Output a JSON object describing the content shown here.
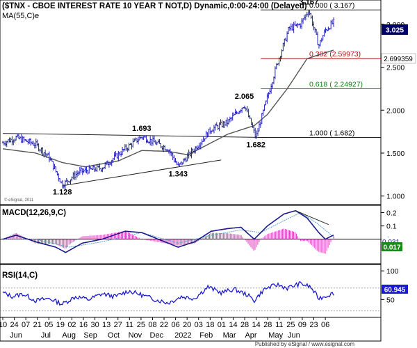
{
  "header": {
    "title": "($TNX - CBOE INTEREST RATE 10 YEAR T NOT,D) Dynamic,0:00-24:00 (Delayed)",
    "ma_label": "MA(55,C)e",
    "esignal_small": "© eSignal, 2011",
    "footer": "Published by eSignal / www.esignal.com"
  },
  "colors": {
    "candle": "#1e1eb4",
    "ma": "#555555",
    "fib_top": "#222222",
    "fib_382": "#b01010",
    "fib_618": "#10a010",
    "fib_100": "#222222",
    "macd_line": "#1a1a8c",
    "macd_signal": "#5aa0d0",
    "macd_hist": "#e040c0",
    "rsi": "#1a1ad0",
    "price_badge": "#000066"
  },
  "chart_data": [
    {
      "type": "candlestick",
      "title": "($TNX - CBOE INTEREST RATE 10 YEAR T NOT,D) Dynamic,0:00-24:00 (Delayed)",
      "ylim": [
        0.9,
        3.25
      ],
      "yticks": [
        1.0,
        1.5,
        2.0,
        2.5,
        3.0
      ],
      "ytick_labels": [
        "1.000",
        "1.500",
        "2.000",
        "2.500",
        "3.000"
      ],
      "last_price": "3.025",
      "ma_value": "2.699359",
      "key_points": [
        {
          "t": 0.0,
          "y": 1.62
        },
        {
          "t": 0.04,
          "y": 1.68
        },
        {
          "t": 0.1,
          "y": 1.6
        },
        {
          "t": 0.14,
          "y": 1.45
        },
        {
          "t": 0.18,
          "y": 1.13
        },
        {
          "t": 0.23,
          "y": 1.28
        },
        {
          "t": 0.3,
          "y": 1.33
        },
        {
          "t": 0.37,
          "y": 1.55
        },
        {
          "t": 0.42,
          "y": 1.693
        },
        {
          "t": 0.5,
          "y": 1.55
        },
        {
          "t": 0.53,
          "y": 1.343
        },
        {
          "t": 0.58,
          "y": 1.55
        },
        {
          "t": 0.63,
          "y": 1.78
        },
        {
          "t": 0.68,
          "y": 1.86
        },
        {
          "t": 0.73,
          "y": 2.065
        },
        {
          "t": 0.765,
          "y": 1.682
        },
        {
          "t": 0.8,
          "y": 2.15
        },
        {
          "t": 0.83,
          "y": 2.55
        },
        {
          "t": 0.865,
          "y": 2.95
        },
        {
          "t": 0.9,
          "y": 3.0
        },
        {
          "t": 0.925,
          "y": 3.167
        },
        {
          "t": 0.955,
          "y": 2.75
        },
        {
          "t": 0.975,
          "y": 2.93
        },
        {
          "t": 1.0,
          "y": 3.025
        }
      ],
      "ma_points": [
        {
          "t": 0.0,
          "y": 1.55
        },
        {
          "t": 0.1,
          "y": 1.5
        },
        {
          "t": 0.18,
          "y": 1.39
        },
        {
          "t": 0.25,
          "y": 1.34
        },
        {
          "t": 0.35,
          "y": 1.41
        },
        {
          "t": 0.42,
          "y": 1.53
        },
        {
          "t": 0.5,
          "y": 1.52
        },
        {
          "t": 0.56,
          "y": 1.48
        },
        {
          "t": 0.62,
          "y": 1.6
        },
        {
          "t": 0.68,
          "y": 1.72
        },
        {
          "t": 0.76,
          "y": 1.82
        },
        {
          "t": 0.8,
          "y": 1.95
        },
        {
          "t": 0.86,
          "y": 2.25
        },
        {
          "t": 0.92,
          "y": 2.6
        },
        {
          "t": 1.0,
          "y": 2.699359
        }
      ],
      "trendlines": [
        {
          "from": {
            "t": 0.0,
            "y": 1.73
          },
          "to": {
            "t": 0.785,
            "y": 1.682
          }
        },
        {
          "from": {
            "t": 0.18,
            "y": 1.12
          },
          "to": {
            "t": 0.66,
            "y": 1.42
          }
        }
      ],
      "fib_levels": [
        {
          "label": "0.000 ( 3.167)",
          "value": 3.167,
          "color_key": "fib_top"
        },
        {
          "label": "0.382 (2.59973)",
          "value": 2.59973,
          "color_key": "fib_382"
        },
        {
          "label": "0.618 ( 2.24927)",
          "value": 2.24927,
          "color_key": "fib_618"
        },
        {
          "label": "1.000 ( 1.682)",
          "value": 1.682,
          "color_key": "fib_100"
        }
      ],
      "annotations": [
        {
          "text": "1.693",
          "t": 0.42,
          "y": 1.693
        },
        {
          "text": "1.128",
          "t": 0.18,
          "y": 1.13
        },
        {
          "text": "1.343",
          "t": 0.53,
          "y": 1.343
        },
        {
          "text": "2.065",
          "t": 0.73,
          "y": 2.065
        },
        {
          "text": "1.682",
          "t": 0.765,
          "y": 1.682
        },
        {
          "text": "3.167",
          "t": 0.925,
          "y": 3.167
        }
      ]
    },
    {
      "type": "line",
      "title": "MACD(12,26,9,C)",
      "ylim": [
        -0.18,
        0.25
      ],
      "yticks": [
        0.0,
        0.1,
        0.2
      ],
      "ytick_labels": [
        "0",
        "0.1",
        "0.2"
      ],
      "last_macd": "0.031",
      "last_signal": "0.017",
      "macd_points": [
        {
          "t": 0.0,
          "y": 0.0
        },
        {
          "t": 0.04,
          "y": 0.03
        },
        {
          "t": 0.1,
          "y": -0.02
        },
        {
          "t": 0.16,
          "y": -0.06
        },
        {
          "t": 0.19,
          "y": -0.1
        },
        {
          "t": 0.24,
          "y": -0.03
        },
        {
          "t": 0.3,
          "y": 0.0
        },
        {
          "t": 0.37,
          "y": 0.06
        },
        {
          "t": 0.42,
          "y": 0.05
        },
        {
          "t": 0.49,
          "y": -0.02
        },
        {
          "t": 0.53,
          "y": -0.06
        },
        {
          "t": 0.58,
          "y": -0.02
        },
        {
          "t": 0.63,
          "y": 0.06
        },
        {
          "t": 0.68,
          "y": 0.08
        },
        {
          "t": 0.72,
          "y": 0.09
        },
        {
          "t": 0.76,
          "y": 0.0
        },
        {
          "t": 0.8,
          "y": 0.1
        },
        {
          "t": 0.85,
          "y": 0.19
        },
        {
          "t": 0.885,
          "y": 0.215
        },
        {
          "t": 0.92,
          "y": 0.16
        },
        {
          "t": 0.955,
          "y": 0.05
        },
        {
          "t": 0.975,
          "y": 0.0
        },
        {
          "t": 1.0,
          "y": 0.031
        }
      ],
      "signal_points": [
        {
          "t": 0.0,
          "y": 0.0
        },
        {
          "t": 0.1,
          "y": 0.0
        },
        {
          "t": 0.2,
          "y": -0.06
        },
        {
          "t": 0.3,
          "y": -0.02
        },
        {
          "t": 0.42,
          "y": 0.05
        },
        {
          "t": 0.53,
          "y": -0.03
        },
        {
          "t": 0.63,
          "y": 0.03
        },
        {
          "t": 0.72,
          "y": 0.07
        },
        {
          "t": 0.78,
          "y": 0.05
        },
        {
          "t": 0.85,
          "y": 0.14
        },
        {
          "t": 0.9,
          "y": 0.2
        },
        {
          "t": 0.95,
          "y": 0.12
        },
        {
          "t": 1.0,
          "y": 0.017
        }
      ],
      "trendline": {
        "from": {
          "t": 0.885,
          "y": 0.215
        },
        "to": {
          "t": 0.985,
          "y": 0.11
        }
      }
    },
    {
      "type": "line",
      "title": "RSI(14,C)",
      "ylim": [
        20,
        110
      ],
      "yticks": [
        50,
        100
      ],
      "ytick_labels": [
        "50",
        "100"
      ],
      "last_value": "60.945",
      "rsi_points": [
        {
          "t": 0.0,
          "y": 62
        },
        {
          "t": 0.03,
          "y": 55
        },
        {
          "t": 0.06,
          "y": 60
        },
        {
          "t": 0.1,
          "y": 48
        },
        {
          "t": 0.14,
          "y": 52
        },
        {
          "t": 0.18,
          "y": 42
        },
        {
          "t": 0.22,
          "y": 55
        },
        {
          "t": 0.26,
          "y": 50
        },
        {
          "t": 0.3,
          "y": 60
        },
        {
          "t": 0.34,
          "y": 55
        },
        {
          "t": 0.38,
          "y": 65
        },
        {
          "t": 0.42,
          "y": 58
        },
        {
          "t": 0.46,
          "y": 50
        },
        {
          "t": 0.5,
          "y": 44
        },
        {
          "t": 0.54,
          "y": 55
        },
        {
          "t": 0.58,
          "y": 52
        },
        {
          "t": 0.62,
          "y": 72
        },
        {
          "t": 0.66,
          "y": 62
        },
        {
          "t": 0.7,
          "y": 68
        },
        {
          "t": 0.74,
          "y": 58
        },
        {
          "t": 0.76,
          "y": 48
        },
        {
          "t": 0.79,
          "y": 68
        },
        {
          "t": 0.83,
          "y": 76
        },
        {
          "t": 0.86,
          "y": 70
        },
        {
          "t": 0.9,
          "y": 78
        },
        {
          "t": 0.93,
          "y": 72
        },
        {
          "t": 0.955,
          "y": 52
        },
        {
          "t": 0.975,
          "y": 56
        },
        {
          "t": 1.0,
          "y": 60.945
        }
      ]
    }
  ],
  "x_axis": {
    "day_labels": [
      "10",
      "24",
      "07",
      "21",
      "05",
      "19",
      "02",
      "16",
      "30",
      "13",
      "27",
      "11",
      "25",
      "08",
      "22",
      "06",
      "20",
      "03",
      "18",
      "01",
      "14",
      "28",
      "14",
      "28",
      "11",
      "25",
      "09",
      "23",
      "06"
    ],
    "month_labels": [
      {
        "text": "Jun",
        "t": 0.04
      },
      {
        "text": "Jul",
        "t": 0.13
      },
      {
        "text": "Aug",
        "t": 0.2
      },
      {
        "text": "Sep",
        "t": 0.265
      },
      {
        "text": "Oct",
        "t": 0.335
      },
      {
        "text": "Nov",
        "t": 0.4
      },
      {
        "text": "Dec",
        "t": 0.465
      },
      {
        "text": "2022",
        "t": 0.545
      },
      {
        "text": "Feb",
        "t": 0.615
      },
      {
        "text": "Mar",
        "t": 0.685
      },
      {
        "text": "Apr",
        "t": 0.75
      },
      {
        "text": "May",
        "t": 0.825
      },
      {
        "text": "Jun",
        "t": 0.88
      }
    ]
  }
}
